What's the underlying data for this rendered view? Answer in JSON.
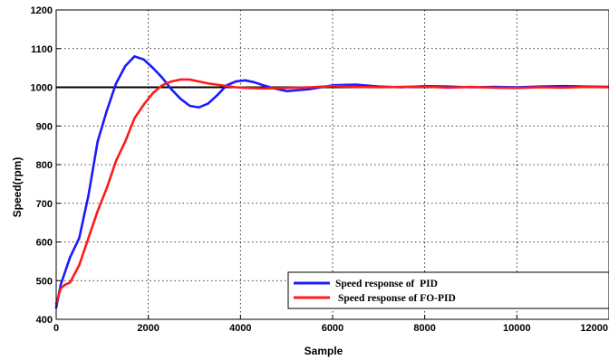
{
  "chart_data": {
    "type": "line",
    "title": "",
    "xlabel": "Sample",
    "ylabel": "Speed(rpm)",
    "xlim": [
      0,
      12000
    ],
    "ylim": [
      400,
      1200
    ],
    "x_ticks": [
      "0",
      "2000",
      "4000",
      "6000",
      "8000",
      "10000",
      "12000"
    ],
    "y_ticks": [
      "400",
      "500",
      "600",
      "700",
      "800",
      "900",
      "1000",
      "1100",
      "1200"
    ],
    "grid": true,
    "legend_position": "bottom-right",
    "reference": {
      "name": "",
      "y": 1000,
      "color": "#000000"
    },
    "series": [
      {
        "name": "Speed response of  PID",
        "color": "#1a1aff",
        "x": [
          0,
          100,
          300,
          500,
          700,
          900,
          1100,
          1300,
          1500,
          1700,
          1900,
          2100,
          2300,
          2500,
          2700,
          2900,
          3100,
          3300,
          3500,
          3700,
          3900,
          4100,
          4300,
          4500,
          4700,
          5000,
          5500,
          6000,
          6500,
          7000,
          7500,
          8000,
          8500,
          9000,
          9500,
          10000,
          10500,
          11000,
          11500,
          12000
        ],
        "values": [
          430,
          490,
          560,
          610,
          720,
          860,
          940,
          1010,
          1055,
          1080,
          1072,
          1050,
          1025,
          995,
          970,
          952,
          948,
          958,
          980,
          1005,
          1015,
          1018,
          1013,
          1005,
          998,
          990,
          995,
          1005,
          1007,
          1002,
          1000,
          1003,
          1002,
          1000,
          1001,
          1000,
          1002,
          1003,
          1002,
          1001
        ]
      },
      {
        "name": "Speed response of FO-PID",
        "color": "#ff1a1a",
        "x": [
          0,
          100,
          200,
          300,
          500,
          700,
          900,
          1100,
          1300,
          1500,
          1700,
          1900,
          2100,
          2300,
          2500,
          2700,
          2900,
          3100,
          3300,
          3600,
          3900,
          4200,
          4500,
          5000,
          5500,
          6000,
          6500,
          7000,
          7500,
          8000,
          8500,
          9000,
          9500,
          10000,
          10500,
          11000,
          11500,
          12000
        ],
        "values": [
          440,
          480,
          490,
          495,
          540,
          610,
          680,
          740,
          810,
          860,
          920,
          955,
          985,
          1005,
          1015,
          1020,
          1020,
          1015,
          1010,
          1005,
          1000,
          998,
          997,
          998,
          1000,
          1003,
          1001,
          1000,
          1001,
          1002,
          999,
          1001,
          999,
          998,
          1000,
          999,
          1001,
          1000
        ]
      }
    ]
  }
}
